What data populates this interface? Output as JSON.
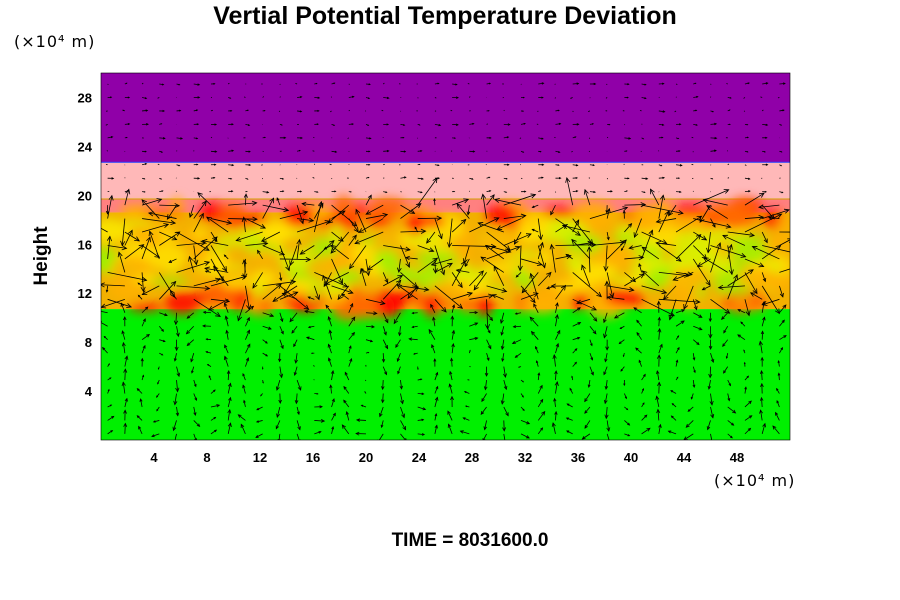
{
  "chart_data": {
    "type": "heatmap",
    "title": "Vertial Potential Temperature Deviation",
    "ylabel": "Height",
    "xlabel": "",
    "y_unit": "(×10⁴ m)",
    "x_unit": "(×10⁴ m)",
    "time_label": "TIME = 8031600.0",
    "xlim": [
      0,
      52
    ],
    "ylim": [
      0,
      30
    ],
    "x_ticks": [
      4,
      8,
      12,
      16,
      20,
      24,
      28,
      32,
      36,
      40,
      44,
      48
    ],
    "y_ticks": [
      4,
      8,
      12,
      16,
      20,
      24,
      28
    ],
    "layers": [
      {
        "y_from": 22.7,
        "y_to": 30,
        "color": "#9000a8"
      },
      {
        "y_from": 19.7,
        "y_to": 22.7,
        "color": "#ffb8b8"
      },
      {
        "y_from": 18.6,
        "y_to": 19.7,
        "color": "#ff8080"
      },
      {
        "y_from": 10.7,
        "y_to": 18.6,
        "color": "#f2b000"
      },
      {
        "y_from": 0,
        "y_to": 10.7,
        "color": "#00f000"
      }
    ],
    "band_colors": [
      "#ff0000",
      "#ff6a00",
      "#ffb000",
      "#ffe000",
      "#d8f000",
      "#a0f000"
    ],
    "vector_field": true
  }
}
